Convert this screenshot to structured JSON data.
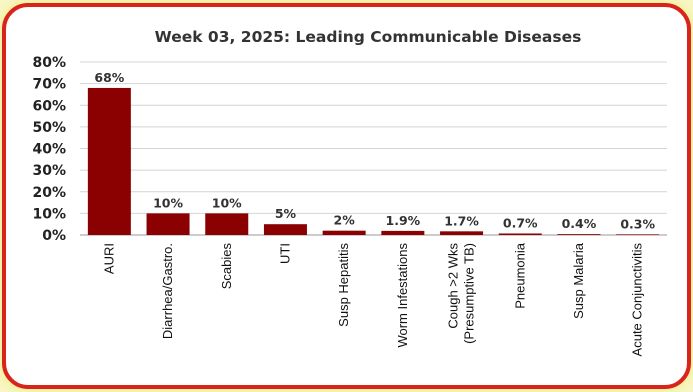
{
  "chart_data": {
    "type": "bar",
    "title": "Week 03, 2025: Leading Communicable Diseases",
    "categories": [
      [
        "AURI"
      ],
      [
        "Diarrhea/Gastro."
      ],
      [
        "Scabies"
      ],
      [
        "UTI"
      ],
      [
        "Susp Hepatitis"
      ],
      [
        "Worm Infestations"
      ],
      [
        "Cough >2 Wks",
        "(Presumptive TB)"
      ],
      [
        "Pneumonia"
      ],
      [
        "Susp Malaria"
      ],
      [
        "Acute Conjunctivitis"
      ]
    ],
    "values": [
      68,
      10,
      10,
      5,
      2,
      1.9,
      1.7,
      0.7,
      0.4,
      0.3
    ],
    "data_labels": [
      "68%",
      "10%",
      "10%",
      "5%",
      "2%",
      "1.9%",
      "1.7%",
      "0.7%",
      "0.4%",
      "0.3%"
    ],
    "ylim": [
      0,
      80
    ],
    "yticks": [
      "0%",
      "10%",
      "20%",
      "30%",
      "40%",
      "50%",
      "60%",
      "70%",
      "80%"
    ],
    "ytick_values": [
      0,
      10,
      20,
      30,
      40,
      50,
      60,
      70,
      80
    ],
    "xlabel": "",
    "ylabel": "",
    "grid": true,
    "legend": "none",
    "bar_color": "#8b0000",
    "frame_border_color": "#d9241c",
    "background_color": "#f8f6c4"
  }
}
